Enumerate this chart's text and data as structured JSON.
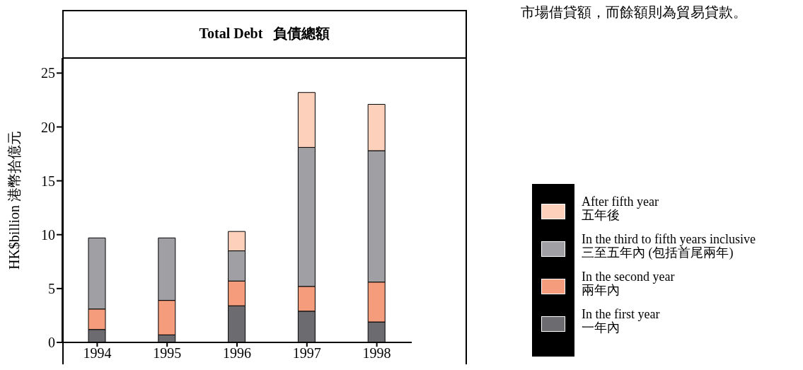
{
  "chart_data": {
    "type": "bar",
    "title": "Total Debt   負債總額",
    "ylabel": "HK$billion   港幣拾億元",
    "annotations": [
      "市場借貸額，而餘額則為貿易貸款。"
    ],
    "categories": [
      "1994",
      "1995",
      "1996",
      "1997",
      "1998"
    ],
    "stacked": true,
    "ylim": [
      0,
      26.4
    ],
    "yticks": [
      0,
      5,
      10,
      15,
      20,
      25
    ],
    "legend": "right",
    "grid": false,
    "series": [
      {
        "name": "In the first year\n一年內",
        "color": "#6c6c70",
        "values": [
          1.2,
          0.7,
          3.4,
          2.9,
          1.9
        ]
      },
      {
        "name": "In the second year\n兩年內",
        "color": "#f49c7c",
        "values": [
          1.9,
          3.2,
          2.3,
          2.3,
          3.7
        ]
      },
      {
        "name": "In the third to fifth years inclusive\n三至五年內 (包括首尾兩年)",
        "color": "#a0a0a4",
        "values": [
          6.6,
          5.8,
          2.8,
          12.9,
          12.2
        ]
      },
      {
        "name": "After fifth year\n五年後",
        "color": "#fdd0bc",
        "values": [
          null,
          null,
          1.8,
          5.1,
          4.3
        ]
      }
    ]
  }
}
